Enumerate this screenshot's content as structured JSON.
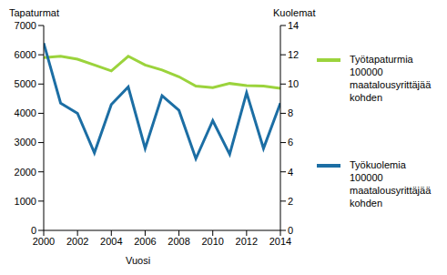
{
  "chart_data": {
    "type": "line",
    "x_label": "Vuosi",
    "y_label": "Tapaturmat",
    "y2_label": "Kuolemat",
    "x": [
      2000,
      2001,
      2002,
      2003,
      2004,
      2005,
      2006,
      2007,
      2008,
      2009,
      2010,
      2011,
      2012,
      2013,
      2014
    ],
    "xlim": [
      2000,
      2014
    ],
    "xticks": [
      2000,
      2002,
      2004,
      2006,
      2008,
      2010,
      2012,
      2014
    ],
    "ylim": [
      0,
      7000
    ],
    "yticks": [
      0,
      1000,
      2000,
      3000,
      4000,
      5000,
      6000,
      7000
    ],
    "y2lim": [
      0,
      14
    ],
    "y2ticks": [
      0,
      2,
      4,
      6,
      8,
      10,
      12,
      14
    ],
    "grid": false,
    "legend": "right",
    "series": [
      {
        "name": "Työtapaturmia 100000 maatalousyrittäjää kohden",
        "color": "#9bd33c",
        "axis": "y",
        "values": [
          5900,
          5950,
          5850,
          5650,
          5450,
          5950,
          5650,
          5480,
          5250,
          4930,
          4880,
          5020,
          4950,
          4930,
          4850
        ]
      },
      {
        "name": "Työkuolemia 100000 maatalousyrittäjää kohden",
        "color": "#1c6ea4",
        "axis": "y2",
        "values": [
          12.8,
          8.7,
          8.0,
          5.3,
          8.6,
          9.8,
          5.6,
          9.2,
          8.2,
          4.9,
          7.5,
          5.2,
          9.4,
          5.6,
          8.7
        ]
      }
    ]
  }
}
